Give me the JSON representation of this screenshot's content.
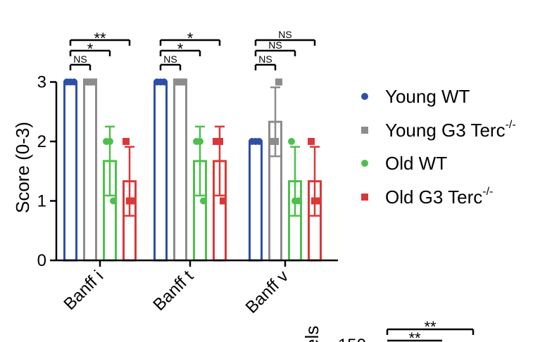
{
  "chart_data": [
    {
      "type": "bar",
      "title": "",
      "xlabel": "",
      "ylabel": "Score (0-3)",
      "ylim": [
        0,
        3
      ],
      "yticks": [
        "0",
        "1",
        "2",
        "3"
      ],
      "categories": [
        "Banff i",
        "Banff t",
        "Banff v"
      ],
      "series": [
        {
          "name": "Young WT",
          "color": "#2E4FA8",
          "marker": "circle",
          "values": [
            3,
            3,
            2
          ],
          "error": [
            0,
            0,
            0
          ],
          "points": [
            [
              3,
              3,
              3
            ],
            [
              3,
              3,
              3
            ],
            [
              2,
              2,
              2
            ]
          ]
        },
        {
          "name": "Young G3 Terc",
          "name_sup": "-/-",
          "color": "#8C8C8C",
          "marker": "square",
          "values": [
            3,
            3,
            2.33
          ],
          "error": [
            0,
            0,
            0.58
          ],
          "points": [
            [
              3,
              3,
              3
            ],
            [
              3,
              3,
              3
            ],
            [
              2,
              2,
              3
            ]
          ]
        },
        {
          "name": "Old WT",
          "color": "#4CC04C",
          "marker": "circle",
          "values": [
            1.67,
            1.67,
            1.33
          ],
          "error": [
            0.58,
            0.58,
            0.58
          ],
          "points": [
            [
              2,
              2,
              1
            ],
            [
              2,
              2,
              1
            ],
            [
              2,
              1,
              1
            ]
          ]
        },
        {
          "name": "Old G3 Terc",
          "name_sup": "-/-",
          "color": "#D93838",
          "marker": "square",
          "values": [
            1.33,
            1.67,
            1.33
          ],
          "error": [
            0.58,
            0.58,
            0.58
          ],
          "points": [
            [
              2,
              1,
              1
            ],
            [
              2,
              2,
              1
            ],
            [
              2,
              1,
              1
            ]
          ]
        }
      ],
      "significance": [
        {
          "category": 0,
          "from": 0,
          "to": 1,
          "label": "NS"
        },
        {
          "category": 0,
          "from": 0,
          "to": 2,
          "label": "*"
        },
        {
          "category": 0,
          "from": 0,
          "to": 3,
          "label": "**"
        },
        {
          "category": 1,
          "from": 0,
          "to": 1,
          "label": "NS"
        },
        {
          "category": 1,
          "from": 0,
          "to": 2,
          "label": "*"
        },
        {
          "category": 1,
          "from": 0,
          "to": 3,
          "label": "*"
        },
        {
          "category": 2,
          "from": 0,
          "to": 1,
          "label": "NS"
        },
        {
          "category": 2,
          "from": 0,
          "to": 2,
          "label": "NS"
        },
        {
          "category": 2,
          "from": 0,
          "to": 3,
          "label": "NS"
        }
      ],
      "legend": "right"
    },
    {
      "type": "bar",
      "partial": true,
      "ylabel_fragment": "els",
      "ytick_fragment": "150",
      "significance_labels": [
        "**",
        "**"
      ]
    }
  ]
}
